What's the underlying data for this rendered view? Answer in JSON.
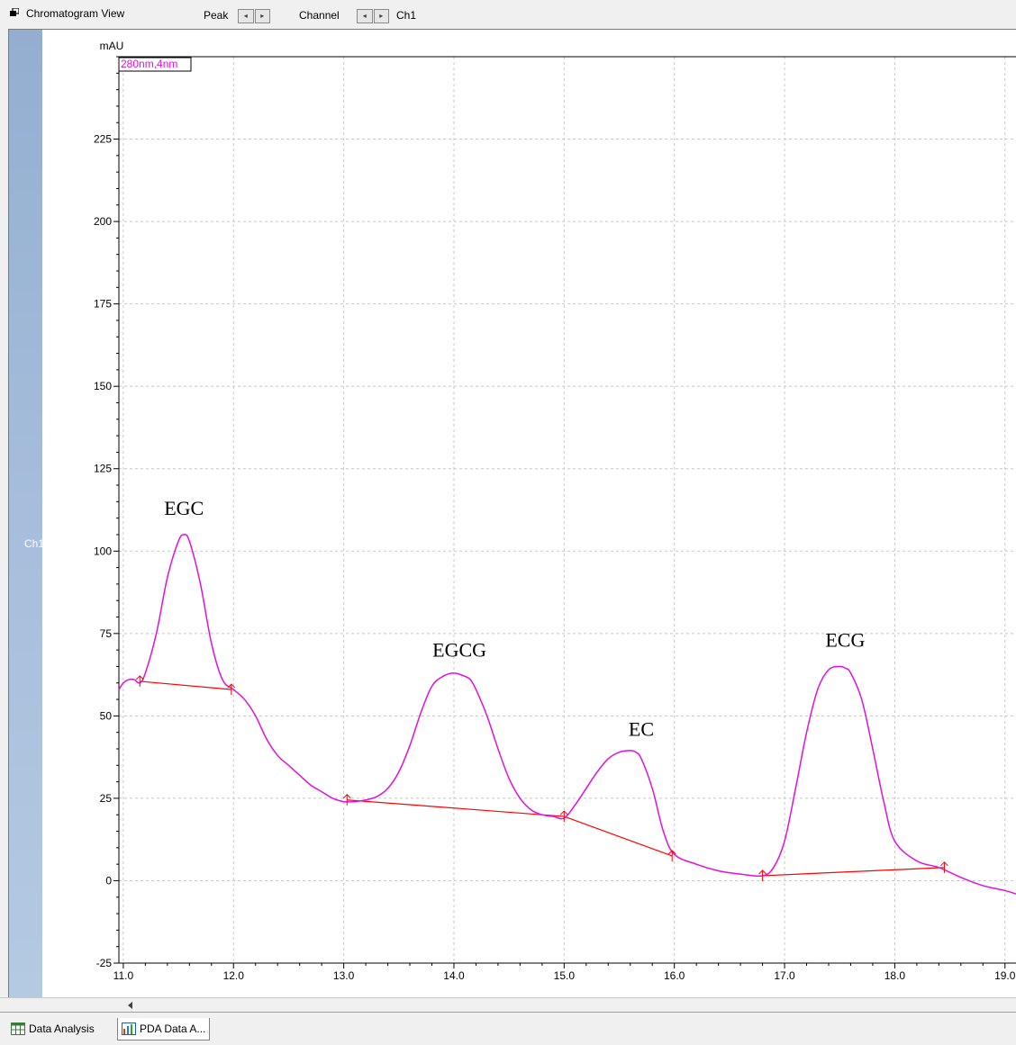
{
  "window": {
    "title": "Chromatogram View",
    "peak_label": "Peak",
    "channel_label": "Channel",
    "channel_value": "Ch1",
    "arrow_left": "◂",
    "arrow_right": "▸"
  },
  "side_panel": {
    "label": "Ch1"
  },
  "tabs": [
    {
      "label": "Data Analysis",
      "icon": "spreadsheet-icon"
    },
    {
      "label": "PDA Data A...",
      "icon": "pda-chart-icon"
    }
  ],
  "chart_data": {
    "type": "line",
    "ylabel": "mAU",
    "xlim": [
      10.96,
      19.1
    ],
    "ylim": [
      -25,
      250
    ],
    "xticks": [
      11.0,
      12.0,
      13.0,
      14.0,
      15.0,
      16.0,
      17.0,
      18.0,
      19.0
    ],
    "xtick_labels": [
      "11.0",
      "12.0",
      "13.0",
      "14.0",
      "15.0",
      "16.0",
      "17.0",
      "18.0",
      "19.0"
    ],
    "yticks": [
      -25,
      0,
      25,
      50,
      75,
      100,
      125,
      150,
      175,
      200,
      225
    ],
    "ytick_labels": [
      "-25",
      "0",
      "25",
      "50",
      "75",
      "100",
      "125",
      "150",
      "175",
      "200",
      "225"
    ],
    "grid": true,
    "legend": "280nm,4nm",
    "series": [
      {
        "name": "280nm,4nm",
        "color": "#e010e0",
        "x": [
          10.96,
          11.0,
          11.05,
          11.1,
          11.15,
          11.2,
          11.3,
          11.4,
          11.5,
          11.55,
          11.6,
          11.7,
          11.8,
          11.9,
          12.0,
          12.1,
          12.2,
          12.3,
          12.4,
          12.5,
          12.6,
          12.7,
          12.8,
          12.9,
          13.0,
          13.1,
          13.2,
          13.3,
          13.4,
          13.5,
          13.6,
          13.7,
          13.8,
          13.9,
          14.0,
          14.1,
          14.15,
          14.2,
          14.3,
          14.4,
          14.5,
          14.6,
          14.7,
          14.8,
          14.9,
          15.0,
          15.1,
          15.2,
          15.3,
          15.4,
          15.5,
          15.6,
          15.65,
          15.7,
          15.8,
          15.9,
          16.0,
          16.2,
          16.4,
          16.6,
          16.8,
          16.9,
          17.0,
          17.1,
          17.2,
          17.3,
          17.4,
          17.5,
          17.55,
          17.6,
          17.7,
          17.8,
          17.9,
          18.0,
          18.2,
          18.4,
          18.6,
          18.8,
          19.0,
          19.1
        ],
        "values": [
          58,
          60,
          61,
          61,
          60,
          63,
          75,
          92,
          103,
          105,
          103,
          90,
          72,
          61,
          58,
          55,
          50,
          43,
          38,
          35,
          32,
          29,
          27,
          25,
          24,
          24,
          24.5,
          25.5,
          28,
          33,
          41,
          51,
          59,
          62,
          63,
          62,
          61,
          58,
          50,
          40,
          31,
          25,
          21.5,
          20,
          19.5,
          19,
          23,
          28,
          33,
          37,
          39,
          39.5,
          39,
          37,
          28,
          15,
          8,
          5,
          3,
          2,
          1.5,
          4,
          12,
          28,
          45,
          58,
          64,
          65,
          64.5,
          63,
          55,
          40,
          24,
          12,
          6,
          4,
          1,
          -1.5,
          -3,
          -4
        ]
      }
    ],
    "baselines": [
      {
        "color": "#ff0000",
        "points": [
          [
            11.15,
            60.5
          ],
          [
            11.98,
            58
          ]
        ]
      },
      {
        "color": "#ff0000",
        "points": [
          [
            13.03,
            24.5
          ],
          [
            15.0,
            19.5
          ],
          [
            15.98,
            7.5
          ]
        ]
      },
      {
        "color": "#ff0000",
        "points": [
          [
            16.8,
            1.5
          ],
          [
            18.45,
            4
          ]
        ]
      }
    ],
    "peak_markers": [
      [
        11.15,
        60.5
      ],
      [
        11.98,
        58
      ],
      [
        13.03,
        24.5
      ],
      [
        15.0,
        19.5
      ],
      [
        15.98,
        7.5
      ],
      [
        16.8,
        1.5
      ],
      [
        18.45,
        4
      ]
    ],
    "annotations": [
      {
        "text": "EGC",
        "x": 11.55,
        "y": 111
      },
      {
        "text": "EGCG",
        "x": 14.05,
        "y": 68
      },
      {
        "text": "EC",
        "x": 15.7,
        "y": 44
      },
      {
        "text": "ECG",
        "x": 17.55,
        "y": 71
      }
    ]
  }
}
